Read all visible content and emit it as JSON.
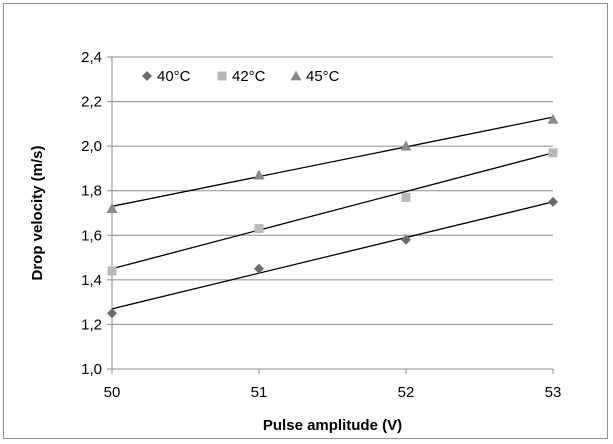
{
  "chart_data": {
    "type": "scatter",
    "title": "",
    "xlabel": "Pulse amplitude (V)",
    "ylabel": "Drop velocity (m/s)",
    "xlim": [
      50,
      53
    ],
    "ylim": [
      1.0,
      2.4
    ],
    "x_ticks": [
      50,
      51,
      52,
      53
    ],
    "x_tick_labels": [
      "50",
      "51",
      "52",
      "53"
    ],
    "y_ticks": [
      1.0,
      1.2,
      1.4,
      1.6,
      1.8,
      2.0,
      2.2,
      2.4
    ],
    "y_tick_labels": [
      "1,0",
      "1,2",
      "1,4",
      "1,6",
      "1,8",
      "2,0",
      "2,2",
      "2,4"
    ],
    "grid": "horizontal",
    "legend_position": "top-left",
    "trendlines": "linear",
    "series": [
      {
        "name": "40°C",
        "marker": "diamond",
        "color": "#6b6b6b",
        "x": [
          50,
          51,
          52,
          53
        ],
        "y": [
          1.25,
          1.45,
          1.58,
          1.75
        ],
        "fit": {
          "start": 1.27,
          "end": 1.75
        }
      },
      {
        "name": "42°C",
        "marker": "square",
        "color": "#b8b8b8",
        "x": [
          50,
          51,
          52,
          53
        ],
        "y": [
          1.44,
          1.63,
          1.77,
          1.97
        ],
        "fit": {
          "start": 1.45,
          "end": 1.97
        }
      },
      {
        "name": "45°C",
        "marker": "triangle",
        "color": "#8a8a8a",
        "x": [
          50,
          51,
          52,
          53
        ],
        "y": [
          1.72,
          1.87,
          2.0,
          2.12
        ],
        "fit": {
          "start": 1.73,
          "end": 2.13
        }
      }
    ]
  }
}
